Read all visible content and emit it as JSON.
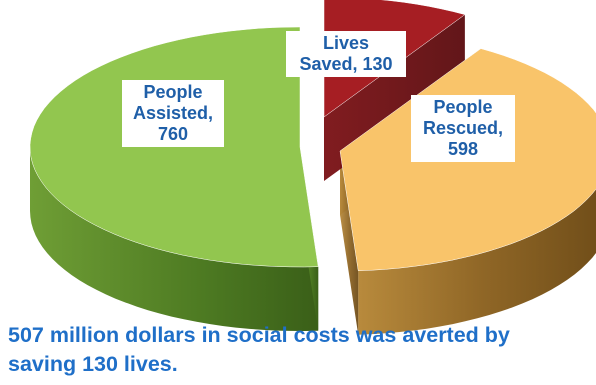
{
  "chart_data": {
    "type": "pie",
    "title": "",
    "slices": [
      {
        "name": "People Assisted",
        "value": 760,
        "color": "#92c64f",
        "label_lines": [
          "People",
          "Assisted,",
          "760"
        ]
      },
      {
        "name": "Lives Saved",
        "value": 130,
        "color": "#a61e23",
        "label_lines": [
          "Lives",
          "Saved, 130"
        ]
      },
      {
        "name": "People Rescued",
        "value": 598,
        "color": "#f9c46a",
        "label_lines": [
          "People",
          "Rescued,",
          "598"
        ]
      }
    ],
    "style": "3d-exploded"
  },
  "caption": {
    "line1": "507 million dollars in social costs was averted by",
    "line2": "saving 130 lives."
  }
}
